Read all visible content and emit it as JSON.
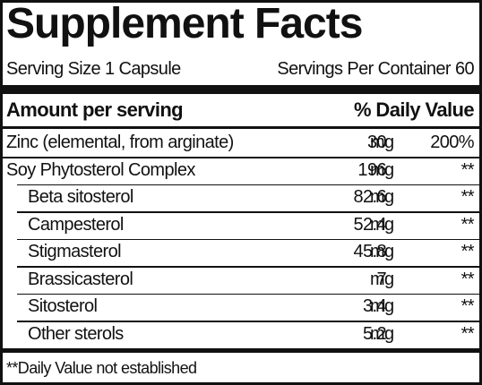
{
  "header": {
    "title": "Supplement Facts",
    "serving_size": "Serving Size 1 Capsule",
    "servings_per_container": "Servings Per Container 60"
  },
  "table": {
    "header": [
      "Amount per serving",
      "% Daily Value"
    ],
    "rows": [
      {
        "name": "Zinc (elemental, from arginate)",
        "amount": "30",
        "unit": "mg",
        "dv": "200%",
        "indent": false
      },
      {
        "name": "Soy Phytosterol Complex",
        "amount": "196",
        "unit": "mg",
        "dv": "**",
        "indent": false
      },
      {
        "name": "Beta sitosterol",
        "amount": "82.6",
        "unit": "mg",
        "dv": "**",
        "indent": true
      },
      {
        "name": "Campesterol",
        "amount": "52.4",
        "unit": "mg",
        "dv": "**",
        "indent": true
      },
      {
        "name": "Stigmasterol",
        "amount": "45.8",
        "unit": "mg",
        "dv": "**",
        "indent": true
      },
      {
        "name": "Brassicasterol",
        "amount": "7",
        "unit": "mg",
        "dv": "**",
        "indent": true
      },
      {
        "name": "Sitosterol",
        "amount": "3.4",
        "unit": "mg",
        "dv": "**",
        "indent": true
      },
      {
        "name": "Other sterols",
        "amount": "5.2",
        "unit": "mg",
        "dv": "**",
        "indent": true
      }
    ]
  },
  "footnote": "**Daily Value not established"
}
